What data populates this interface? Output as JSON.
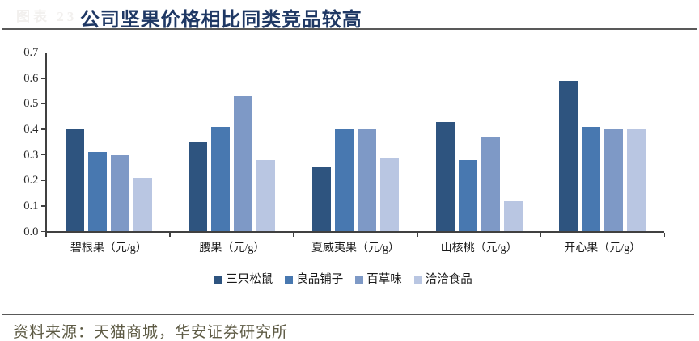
{
  "header": {
    "figure_label": "图表 23",
    "title": "公司坚果价格相比同类竞品较高",
    "title_color": "#1f3864"
  },
  "chart_data": {
    "type": "bar",
    "title": "公司坚果价格相比同类竞品较高",
    "categories": [
      "碧根果（元/g）",
      "腰果（元/g）",
      "夏威夷果（元/g）",
      "山核桃（元/g）",
      "开心果（元/g）"
    ],
    "series": [
      {
        "name": "三只松鼠",
        "color": "#2e547f",
        "values": [
          0.4,
          0.35,
          0.25,
          0.43,
          0.59
        ]
      },
      {
        "name": "良品铺子",
        "color": "#4878b0",
        "values": [
          0.31,
          0.41,
          0.4,
          0.28,
          0.41
        ]
      },
      {
        "name": "百草味",
        "color": "#7e99c6",
        "values": [
          0.3,
          0.53,
          0.4,
          0.37,
          0.4
        ]
      },
      {
        "name": "洽洽食品",
        "color": "#b9c6e2",
        "values": [
          0.21,
          0.28,
          0.29,
          0.12,
          0.4
        ]
      }
    ],
    "xlabel": "",
    "ylabel": "",
    "ylim": [
      0,
      0.7
    ],
    "ytick_step": 0.1,
    "ytick_labels": [
      "0.0",
      "0.1",
      "0.2",
      "0.3",
      "0.4",
      "0.5",
      "0.6",
      "0.7"
    ],
    "grid": false,
    "legend_position": "bottom"
  },
  "footer": {
    "source_label": "资料来源：天猫商城，华安证券研究所"
  }
}
